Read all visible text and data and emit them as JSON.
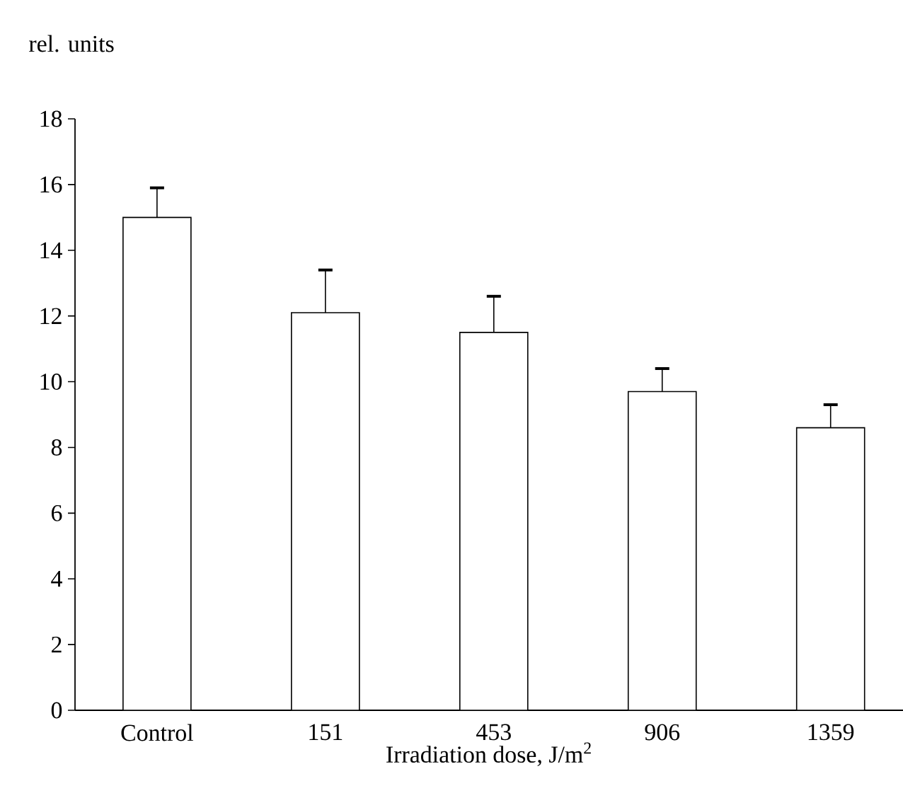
{
  "chart_data": {
    "type": "bar",
    "xlabel": "Irradiation dose, J/m$^{2}$",
    "ylabel": "rel. units",
    "categories": [
      "Control",
      "151",
      "453",
      "906",
      "1359"
    ],
    "values": [
      15.0,
      12.1,
      11.5,
      9.7,
      8.6
    ],
    "errors": [
      [
        15.0,
        15.9
      ],
      [
        12.1,
        13.4
      ],
      [
        11.5,
        12.6
      ],
      [
        9.7,
        10.4
      ],
      [
        8.6,
        9.3
      ]
    ],
    "color": "#ffffff",
    "ylim": [
      0,
      18
    ],
    "yticks": [
      0,
      2,
      4,
      6,
      8,
      10,
      12,
      14,
      16,
      18
    ],
    "grid": false
  }
}
